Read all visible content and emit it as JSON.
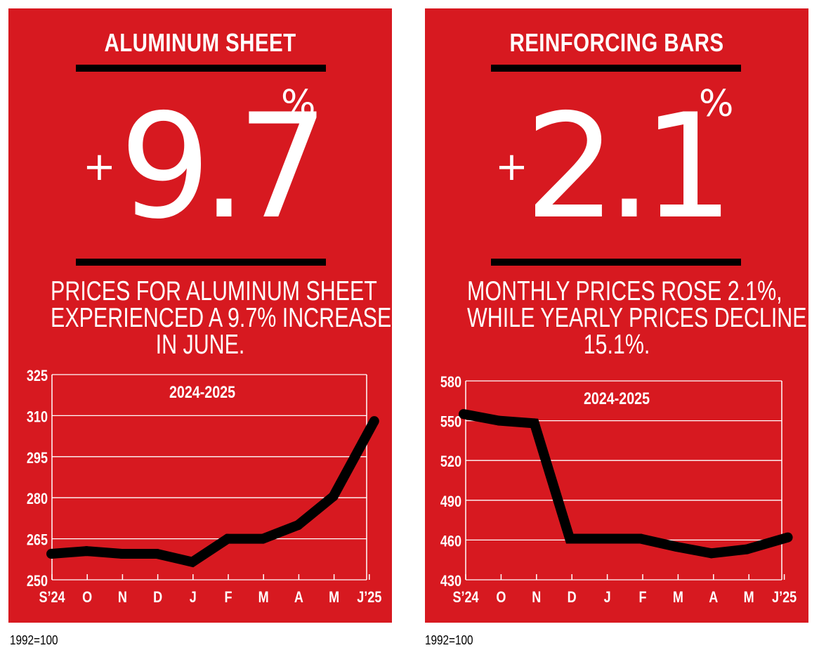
{
  "panels": [
    {
      "title": "ALUMINUM SHEET",
      "stat_sign": "+",
      "stat_value": "9.7",
      "stat_unit": "%",
      "description_lines": [
        "PRICES FOR ALUMINUM SHEET",
        "EXPERIENCED A 9.7% INCREASE",
        "IN JUNE."
      ],
      "note": "1992=100"
    },
    {
      "title": "REINFORCING BARS",
      "stat_sign": "+",
      "stat_value": "2.1",
      "stat_unit": "%",
      "description_lines": [
        "MONTHLY PRICES ROSE 2.1%,",
        "WHILE YEARLY PRICES DECLINED",
        "15.1%."
      ],
      "note": "1992=100"
    }
  ],
  "colors": {
    "panel_bg": "#d71920",
    "text": "#ffffff",
    "line": "#000000",
    "grid": "#ffffff"
  },
  "chart_data": [
    {
      "type": "line",
      "title": "2024-2025",
      "categories": [
        "S’24",
        "O",
        "N",
        "D",
        "J",
        "F",
        "M",
        "A",
        "M",
        "J’25"
      ],
      "values": [
        259.5,
        260.5,
        259.5,
        259.5,
        256.5,
        265,
        265,
        270,
        280.5,
        308
      ],
      "ylim": [
        250,
        325
      ],
      "yticks": [
        325,
        310,
        295,
        280,
        265,
        250
      ],
      "grid": true,
      "line_color": "#000000"
    },
    {
      "type": "line",
      "title": "2024-2025",
      "categories": [
        "S’24",
        "O",
        "N",
        "D",
        "J",
        "F",
        "M",
        "A",
        "M",
        "J’25"
      ],
      "values": [
        555,
        550,
        548,
        461,
        461,
        461,
        455,
        450,
        453,
        462
      ],
      "ylim": [
        430,
        580
      ],
      "yticks": [
        580,
        550,
        520,
        490,
        460,
        430
      ],
      "grid": true,
      "line_color": "#000000"
    }
  ]
}
